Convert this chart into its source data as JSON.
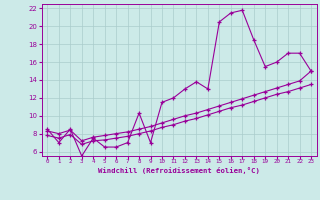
{
  "xlabel": "Windchill (Refroidissement éolien,°C)",
  "bg_color": "#cceae8",
  "grid_color": "#aacccc",
  "line_color": "#990099",
  "xlim": [
    -0.5,
    23.5
  ],
  "ylim": [
    5.5,
    22.5
  ],
  "xticks": [
    0,
    1,
    2,
    3,
    4,
    5,
    6,
    7,
    8,
    9,
    10,
    11,
    12,
    13,
    14,
    15,
    16,
    17,
    18,
    19,
    20,
    21,
    22,
    23
  ],
  "yticks": [
    6,
    8,
    10,
    12,
    14,
    16,
    18,
    20,
    22
  ],
  "series1_x": [
    0,
    1,
    2,
    3,
    4,
    5,
    6,
    7,
    8,
    9,
    10,
    11,
    12,
    13,
    14,
    15,
    16,
    17,
    18,
    19,
    20,
    21,
    22,
    23
  ],
  "series1_y": [
    8.5,
    7.0,
    8.5,
    5.5,
    7.5,
    6.5,
    6.5,
    7.0,
    10.3,
    7.0,
    11.5,
    12.0,
    13.0,
    13.8,
    13.0,
    20.5,
    21.5,
    21.8,
    18.5,
    15.5,
    16.0,
    17.0,
    17.0,
    15.0
  ],
  "series2_x": [
    0,
    1,
    2,
    3,
    4,
    5,
    6,
    7,
    8,
    9,
    10,
    11,
    12,
    13,
    14,
    15,
    16,
    17,
    18,
    19,
    20,
    21,
    22,
    23
  ],
  "series2_y": [
    7.8,
    7.5,
    7.9,
    6.8,
    7.2,
    7.3,
    7.5,
    7.7,
    8.0,
    8.3,
    8.7,
    9.0,
    9.4,
    9.7,
    10.1,
    10.5,
    10.9,
    11.2,
    11.6,
    12.0,
    12.4,
    12.7,
    13.1,
    13.5
  ],
  "series3_x": [
    0,
    1,
    2,
    3,
    4,
    5,
    6,
    7,
    8,
    9,
    10,
    11,
    12,
    13,
    14,
    15,
    16,
    17,
    18,
    19,
    20,
    21,
    22,
    23
  ],
  "series3_y": [
    8.3,
    8.0,
    8.4,
    7.2,
    7.6,
    7.8,
    8.0,
    8.2,
    8.5,
    8.8,
    9.2,
    9.6,
    10.0,
    10.3,
    10.7,
    11.1,
    11.5,
    11.9,
    12.3,
    12.7,
    13.1,
    13.5,
    13.9,
    15.0
  ]
}
